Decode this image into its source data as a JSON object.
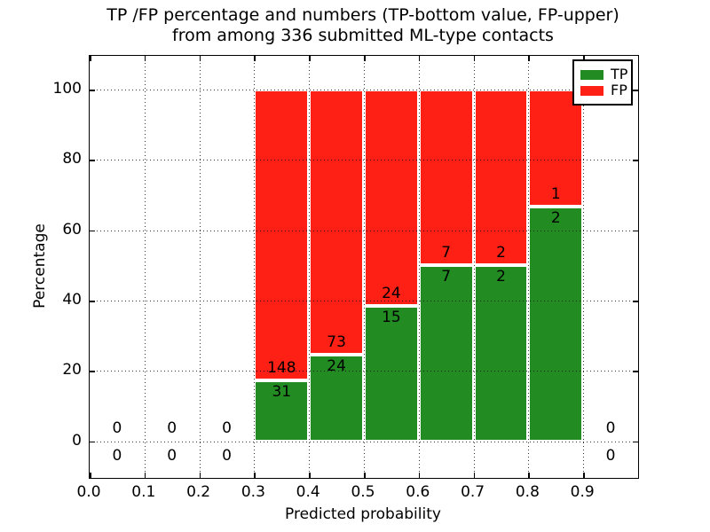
{
  "figure": {
    "title_line1": "TP /FP percentage and numbers (TP-bottom value, FP-upper)",
    "title_line2": "from among 336 submitted ML-type contacts"
  },
  "chart_data": {
    "type": "bar",
    "stacked": true,
    "normalization": "each drawn bar stacks TP%+FP% to 100",
    "title": "TP /FP percentage and numbers (TP-bottom value, FP-upper)\nfrom among 336 submitted ML-type contacts",
    "xlabel": "Predicted probability",
    "ylabel": "Percentage",
    "total_contacts": 336,
    "xlim": [
      0.0,
      1.0
    ],
    "ylim": [
      -10.4,
      109.6
    ],
    "x_tick_labels": [
      "0.0",
      "0.1",
      "0.2",
      "0.3",
      "0.4",
      "0.5",
      "0.6",
      "0.7",
      "0.8",
      "0.9"
    ],
    "y_tick_labels": [
      "0",
      "20",
      "40",
      "60",
      "80",
      "100"
    ],
    "y_tick_values": [
      0,
      20,
      40,
      60,
      80,
      100
    ],
    "grid": "dotted, drawn above bars",
    "bin_width": 0.1,
    "colors": {
      "tp": "#228b22",
      "fp": "#ff2015"
    },
    "legend": {
      "position": "upper right",
      "entries": [
        {
          "label": "TP",
          "color_key": "tp"
        },
        {
          "label": "FP",
          "color_key": "fp"
        }
      ]
    },
    "bins": [
      {
        "x_range": [
          0.0,
          0.1
        ],
        "tp_count": 0,
        "fp_count": 0,
        "tp_pct": null
      },
      {
        "x_range": [
          0.1,
          0.2
        ],
        "tp_count": 0,
        "fp_count": 0,
        "tp_pct": null
      },
      {
        "x_range": [
          0.2,
          0.3
        ],
        "tp_count": 0,
        "fp_count": 0,
        "tp_pct": null
      },
      {
        "x_range": [
          0.3,
          0.4
        ],
        "tp_count": 31,
        "fp_count": 148,
        "tp_pct": 17.3
      },
      {
        "x_range": [
          0.4,
          0.5
        ],
        "tp_count": 24,
        "fp_count": 73,
        "tp_pct": 24.7
      },
      {
        "x_range": [
          0.5,
          0.6
        ],
        "tp_count": 15,
        "fp_count": 24,
        "tp_pct": 38.5
      },
      {
        "x_range": [
          0.6,
          0.7
        ],
        "tp_count": 7,
        "fp_count": 7,
        "tp_pct": 50.0
      },
      {
        "x_range": [
          0.7,
          0.8
        ],
        "tp_count": 2,
        "fp_count": 2,
        "tp_pct": 50.0
      },
      {
        "x_range": [
          0.8,
          0.9
        ],
        "tp_count": 2,
        "fp_count": 1,
        "tp_pct": 66.7
      },
      {
        "x_range": [
          0.9,
          1.0
        ],
        "tp_count": 0,
        "fp_count": 0,
        "tp_pct": null
      }
    ]
  }
}
